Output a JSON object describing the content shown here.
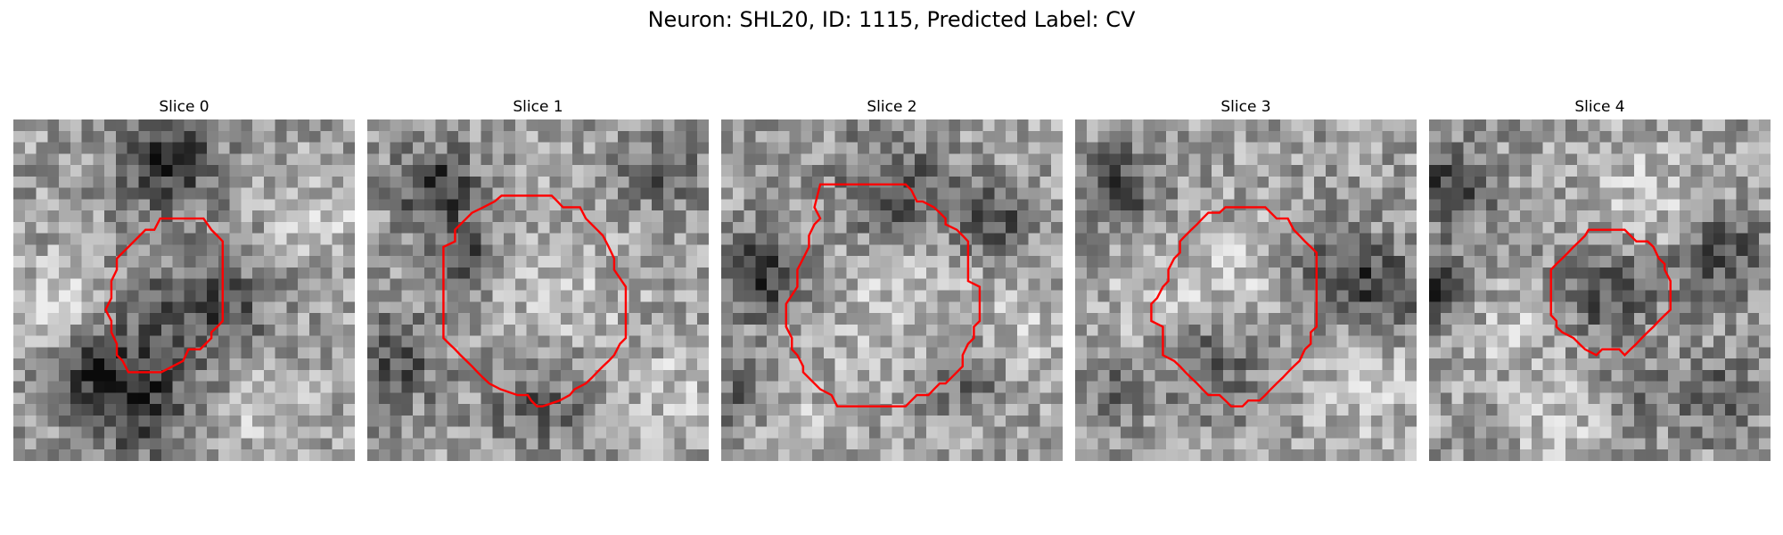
{
  "figure": {
    "title": "Neuron: SHL20, ID: 1115, Predicted Label: CV"
  },
  "contour_color": "#ff0000",
  "panels": [
    {
      "title": "Slice 0",
      "seed": 11,
      "contour": [
        [
          0.43,
          0.29
        ],
        [
          0.557,
          0.29
        ],
        [
          0.58,
          0.323
        ],
        [
          0.597,
          0.34
        ],
        [
          0.613,
          0.357
        ],
        [
          0.613,
          0.39
        ],
        [
          0.613,
          0.59
        ],
        [
          0.597,
          0.607
        ],
        [
          0.58,
          0.623
        ],
        [
          0.58,
          0.64
        ],
        [
          0.563,
          0.657
        ],
        [
          0.547,
          0.673
        ],
        [
          0.53,
          0.673
        ],
        [
          0.513,
          0.673
        ],
        [
          0.497,
          0.707
        ],
        [
          0.433,
          0.74
        ],
        [
          0.337,
          0.74
        ],
        [
          0.32,
          0.707
        ],
        [
          0.303,
          0.69
        ],
        [
          0.303,
          0.657
        ],
        [
          0.287,
          0.623
        ],
        [
          0.287,
          0.59
        ],
        [
          0.27,
          0.557
        ],
        [
          0.287,
          0.523
        ],
        [
          0.287,
          0.473
        ],
        [
          0.303,
          0.44
        ],
        [
          0.303,
          0.407
        ],
        [
          0.32,
          0.39
        ],
        [
          0.337,
          0.373
        ],
        [
          0.353,
          0.357
        ],
        [
          0.37,
          0.34
        ],
        [
          0.387,
          0.323
        ],
        [
          0.413,
          0.323
        ]
      ],
      "dark_blobs": [
        [
          0.45,
          0.12,
          0.1,
          0.9
        ],
        [
          0.35,
          0.82,
          0.12,
          0.8
        ],
        [
          0.2,
          0.72,
          0.08,
          0.6
        ],
        [
          0.62,
          0.55,
          0.1,
          0.5
        ],
        [
          0.45,
          0.58,
          0.14,
          0.35
        ]
      ],
      "light_blobs": [
        [
          0.13,
          0.55,
          0.1,
          0.6
        ],
        [
          0.75,
          0.85,
          0.1,
          0.5
        ],
        [
          0.9,
          0.3,
          0.09,
          0.5
        ]
      ]
    },
    {
      "title": "Slice 1",
      "seed": 23,
      "contour": [
        [
          0.393,
          0.223
        ],
        [
          0.41,
          0.223
        ],
        [
          0.54,
          0.223
        ],
        [
          0.557,
          0.24
        ],
        [
          0.573,
          0.257
        ],
        [
          0.623,
          0.257
        ],
        [
          0.64,
          0.29
        ],
        [
          0.657,
          0.307
        ],
        [
          0.673,
          0.323
        ],
        [
          0.69,
          0.34
        ],
        [
          0.707,
          0.373
        ],
        [
          0.723,
          0.407
        ],
        [
          0.723,
          0.44
        ],
        [
          0.757,
          0.49
        ],
        [
          0.757,
          0.64
        ],
        [
          0.74,
          0.657
        ],
        [
          0.723,
          0.69
        ],
        [
          0.707,
          0.707
        ],
        [
          0.69,
          0.723
        ],
        [
          0.673,
          0.74
        ],
        [
          0.657,
          0.757
        ],
        [
          0.64,
          0.773
        ],
        [
          0.607,
          0.79
        ],
        [
          0.593,
          0.807
        ],
        [
          0.563,
          0.823
        ],
        [
          0.513,
          0.84
        ],
        [
          0.497,
          0.84
        ],
        [
          0.48,
          0.823
        ],
        [
          0.47,
          0.807
        ],
        [
          0.44,
          0.807
        ],
        [
          0.39,
          0.79
        ],
        [
          0.357,
          0.773
        ],
        [
          0.34,
          0.757
        ],
        [
          0.323,
          0.74
        ],
        [
          0.307,
          0.723
        ],
        [
          0.273,
          0.69
        ],
        [
          0.257,
          0.673
        ],
        [
          0.24,
          0.657
        ],
        [
          0.223,
          0.64
        ],
        [
          0.223,
          0.373
        ],
        [
          0.257,
          0.357
        ],
        [
          0.257,
          0.323
        ],
        [
          0.273,
          0.307
        ],
        [
          0.29,
          0.29
        ],
        [
          0.307,
          0.273
        ],
        [
          0.34,
          0.257
        ],
        [
          0.373,
          0.24
        ]
      ],
      "dark_blobs": [
        [
          0.2,
          0.2,
          0.08,
          0.9
        ],
        [
          0.08,
          0.7,
          0.1,
          0.6
        ],
        [
          0.5,
          0.82,
          0.1,
          0.5
        ],
        [
          0.85,
          0.15,
          0.08,
          0.5
        ],
        [
          0.3,
          0.4,
          0.07,
          0.6
        ]
      ],
      "light_blobs": [
        [
          0.55,
          0.5,
          0.16,
          0.35
        ],
        [
          0.9,
          0.8,
          0.1,
          0.4
        ]
      ]
    },
    {
      "title": "Slice 2",
      "seed": 37,
      "contour": [
        [
          0.29,
          0.19
        ],
        [
          0.307,
          0.19
        ],
        [
          0.54,
          0.19
        ],
        [
          0.557,
          0.207
        ],
        [
          0.573,
          0.24
        ],
        [
          0.59,
          0.24
        ],
        [
          0.623,
          0.257
        ],
        [
          0.64,
          0.273
        ],
        [
          0.657,
          0.29
        ],
        [
          0.657,
          0.307
        ],
        [
          0.69,
          0.323
        ],
        [
          0.707,
          0.34
        ],
        [
          0.723,
          0.357
        ],
        [
          0.723,
          0.473
        ],
        [
          0.757,
          0.49
        ],
        [
          0.757,
          0.59
        ],
        [
          0.74,
          0.607
        ],
        [
          0.74,
          0.64
        ],
        [
          0.723,
          0.657
        ],
        [
          0.707,
          0.69
        ],
        [
          0.707,
          0.723
        ],
        [
          0.69,
          0.74
        ],
        [
          0.673,
          0.757
        ],
        [
          0.657,
          0.773
        ],
        [
          0.64,
          0.773
        ],
        [
          0.623,
          0.79
        ],
        [
          0.607,
          0.807
        ],
        [
          0.573,
          0.807
        ],
        [
          0.557,
          0.823
        ],
        [
          0.54,
          0.84
        ],
        [
          0.34,
          0.84
        ],
        [
          0.323,
          0.807
        ],
        [
          0.29,
          0.79
        ],
        [
          0.273,
          0.773
        ],
        [
          0.257,
          0.757
        ],
        [
          0.24,
          0.74
        ],
        [
          0.24,
          0.723
        ],
        [
          0.223,
          0.69
        ],
        [
          0.207,
          0.673
        ],
        [
          0.207,
          0.64
        ],
        [
          0.19,
          0.607
        ],
        [
          0.19,
          0.54
        ],
        [
          0.223,
          0.49
        ],
        [
          0.223,
          0.44
        ],
        [
          0.24,
          0.407
        ],
        [
          0.257,
          0.373
        ],
        [
          0.257,
          0.34
        ],
        [
          0.273,
          0.307
        ],
        [
          0.29,
          0.29
        ],
        [
          0.273,
          0.257
        ]
      ],
      "dark_blobs": [
        [
          0.12,
          0.45,
          0.09,
          0.9
        ],
        [
          0.5,
          0.22,
          0.12,
          0.6
        ],
        [
          0.05,
          0.8,
          0.07,
          0.5
        ],
        [
          0.8,
          0.3,
          0.08,
          0.6
        ],
        [
          0.7,
          0.75,
          0.08,
          0.5
        ]
      ],
      "light_blobs": [
        [
          0.5,
          0.52,
          0.17,
          0.4
        ],
        [
          0.9,
          0.6,
          0.1,
          0.4
        ],
        [
          0.2,
          0.9,
          0.1,
          0.4
        ]
      ]
    },
    {
      "title": "Slice 3",
      "seed": 51,
      "contour": [
        [
          0.44,
          0.257
        ],
        [
          0.557,
          0.257
        ],
        [
          0.573,
          0.273
        ],
        [
          0.59,
          0.29
        ],
        [
          0.623,
          0.29
        ],
        [
          0.64,
          0.323
        ],
        [
          0.657,
          0.34
        ],
        [
          0.673,
          0.357
        ],
        [
          0.69,
          0.373
        ],
        [
          0.707,
          0.39
        ],
        [
          0.707,
          0.607
        ],
        [
          0.69,
          0.623
        ],
        [
          0.69,
          0.657
        ],
        [
          0.673,
          0.673
        ],
        [
          0.657,
          0.707
        ],
        [
          0.64,
          0.723
        ],
        [
          0.623,
          0.74
        ],
        [
          0.607,
          0.757
        ],
        [
          0.59,
          0.773
        ],
        [
          0.573,
          0.79
        ],
        [
          0.557,
          0.807
        ],
        [
          0.54,
          0.823
        ],
        [
          0.507,
          0.823
        ],
        [
          0.49,
          0.84
        ],
        [
          0.457,
          0.84
        ],
        [
          0.44,
          0.823
        ],
        [
          0.423,
          0.807
        ],
        [
          0.39,
          0.807
        ],
        [
          0.373,
          0.79
        ],
        [
          0.357,
          0.773
        ],
        [
          0.34,
          0.757
        ],
        [
          0.323,
          0.74
        ],
        [
          0.307,
          0.723
        ],
        [
          0.29,
          0.707
        ],
        [
          0.257,
          0.69
        ],
        [
          0.257,
          0.607
        ],
        [
          0.223,
          0.59
        ],
        [
          0.223,
          0.54
        ],
        [
          0.24,
          0.523
        ],
        [
          0.257,
          0.49
        ],
        [
          0.273,
          0.473
        ],
        [
          0.273,
          0.44
        ],
        [
          0.29,
          0.407
        ],
        [
          0.307,
          0.39
        ],
        [
          0.307,
          0.357
        ],
        [
          0.323,
          0.34
        ],
        [
          0.34,
          0.323
        ],
        [
          0.357,
          0.307
        ],
        [
          0.373,
          0.29
        ],
        [
          0.39,
          0.273
        ],
        [
          0.423,
          0.273
        ]
      ],
      "dark_blobs": [
        [
          0.12,
          0.2,
          0.08,
          0.7
        ],
        [
          0.75,
          0.45,
          0.1,
          0.6
        ],
        [
          0.92,
          0.5,
          0.08,
          0.6
        ],
        [
          0.4,
          0.7,
          0.1,
          0.6
        ],
        [
          0.1,
          0.8,
          0.08,
          0.4
        ]
      ],
      "light_blobs": [
        [
          0.45,
          0.5,
          0.14,
          0.5
        ],
        [
          0.85,
          0.8,
          0.1,
          0.5
        ],
        [
          0.2,
          0.55,
          0.08,
          0.4
        ]
      ]
    },
    {
      "title": "Slice 4",
      "seed": 67,
      "contour": [
        [
          0.467,
          0.323
        ],
        [
          0.573,
          0.323
        ],
        [
          0.59,
          0.34
        ],
        [
          0.607,
          0.357
        ],
        [
          0.64,
          0.357
        ],
        [
          0.657,
          0.373
        ],
        [
          0.673,
          0.407
        ],
        [
          0.69,
          0.423
        ],
        [
          0.69,
          0.44
        ],
        [
          0.707,
          0.473
        ],
        [
          0.707,
          0.557
        ],
        [
          0.69,
          0.573
        ],
        [
          0.673,
          0.59
        ],
        [
          0.657,
          0.607
        ],
        [
          0.64,
          0.623
        ],
        [
          0.623,
          0.64
        ],
        [
          0.607,
          0.657
        ],
        [
          0.59,
          0.673
        ],
        [
          0.573,
          0.69
        ],
        [
          0.557,
          0.673
        ],
        [
          0.507,
          0.673
        ],
        [
          0.49,
          0.69
        ],
        [
          0.457,
          0.673
        ],
        [
          0.44,
          0.657
        ],
        [
          0.423,
          0.64
        ],
        [
          0.39,
          0.623
        ],
        [
          0.373,
          0.607
        ],
        [
          0.373,
          0.59
        ],
        [
          0.357,
          0.573
        ],
        [
          0.357,
          0.44
        ],
        [
          0.373,
          0.423
        ],
        [
          0.39,
          0.407
        ],
        [
          0.407,
          0.39
        ],
        [
          0.423,
          0.373
        ],
        [
          0.44,
          0.357
        ],
        [
          0.457,
          0.34
        ]
      ],
      "dark_blobs": [
        [
          0.07,
          0.2,
          0.08,
          0.8
        ],
        [
          0.03,
          0.5,
          0.07,
          0.8
        ],
        [
          0.52,
          0.5,
          0.1,
          0.6
        ],
        [
          0.85,
          0.4,
          0.1,
          0.6
        ],
        [
          0.85,
          0.82,
          0.08,
          0.6
        ],
        [
          0.6,
          0.8,
          0.07,
          0.4
        ]
      ],
      "light_blobs": [
        [
          0.65,
          0.25,
          0.12,
          0.5
        ],
        [
          0.25,
          0.6,
          0.1,
          0.4
        ],
        [
          0.4,
          0.9,
          0.1,
          0.4
        ]
      ]
    }
  ]
}
